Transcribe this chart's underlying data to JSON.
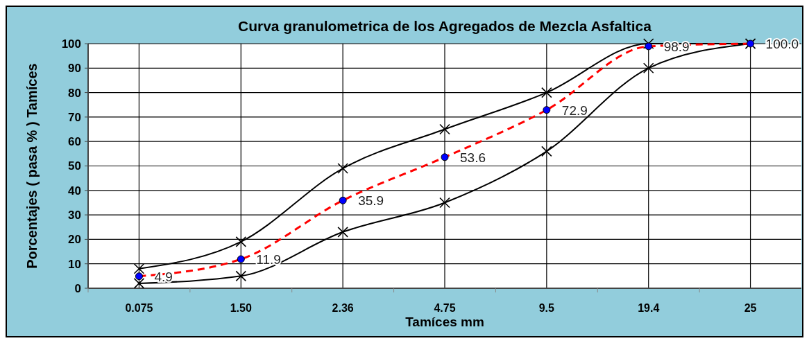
{
  "chart_data": {
    "type": "line",
    "title": "Curva granulometrica de los Agregados de Mezcla Asfaltica",
    "xlabel": "Tamíces  mm",
    "ylabel": "Porcentajes  ( pasa % )  Tamíces",
    "categories": [
      "0.075",
      "1.50",
      "2.36",
      "4.75",
      "9.5",
      "19.4",
      "25"
    ],
    "series": [
      {
        "color": "#000000",
        "marker": "cross",
        "line_style": "solid",
        "values": [
          8,
          19,
          49,
          65,
          80,
          100,
          100
        ]
      },
      {
        "color": "#000000",
        "marker": "cross",
        "line_style": "solid",
        "values": [
          2,
          5,
          23,
          35,
          56,
          90,
          100
        ]
      },
      {
        "color": "#ff0000",
        "marker": "circle",
        "line_style": "dashed",
        "values": [
          4.9,
          11.9,
          35.9,
          53.6,
          72.9,
          98.9,
          100.0
        ],
        "value_labels": [
          "4.9",
          "11.9",
          "35.9",
          "53.6",
          "72.9",
          "98.9",
          "100.0"
        ]
      }
    ],
    "ylim": [
      0,
      100
    ],
    "yticks": [
      0,
      10,
      20,
      30,
      40,
      50,
      60,
      70,
      80,
      90,
      100
    ],
    "grid": true
  }
}
